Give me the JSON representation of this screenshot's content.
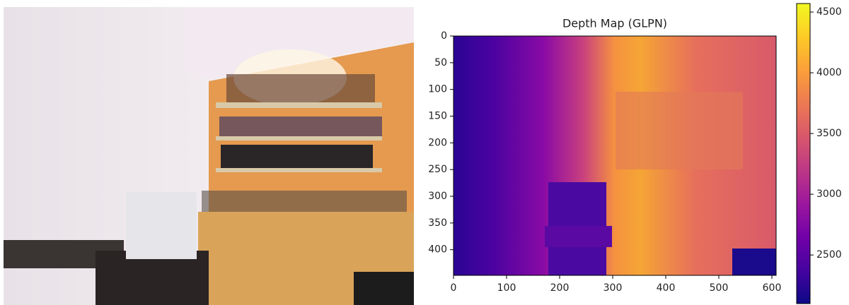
{
  "chart_data": {
    "type": "heatmap",
    "title": "Depth Map (GLPN)",
    "colormap": "plasma",
    "xlim": [
      0,
      608
    ],
    "xticks": [
      0,
      100,
      200,
      300,
      400,
      500,
      600
    ],
    "ylim": [
      448,
      0
    ],
    "yticks": [
      0,
      50,
      100,
      150,
      200,
      250,
      300,
      350,
      400
    ],
    "clim": [
      2100,
      4570
    ],
    "cticks": [
      2500,
      3000,
      3500,
      4000,
      4500
    ]
  }
}
